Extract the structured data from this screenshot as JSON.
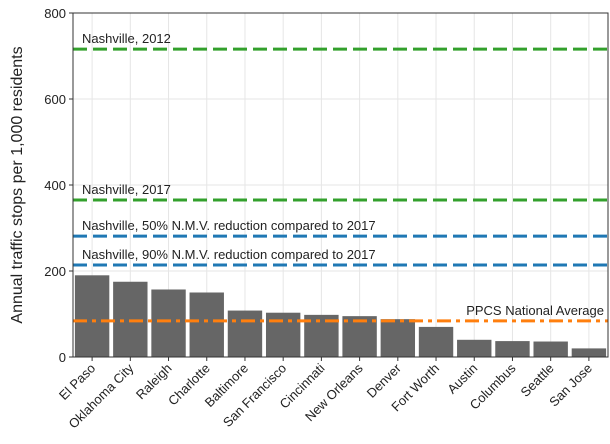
{
  "chart_data": {
    "type": "bar",
    "y_label": "Annual traffic stops per 1,000 residents",
    "categories": [
      "El Paso",
      "Oklahoma City",
      "Raleigh",
      "Charlotte",
      "Baltimore",
      "San Francisco",
      "Cincinnati",
      "New Orleans",
      "Denver",
      "Fort Worth",
      "Austin",
      "Columbus",
      "Seattle",
      "San Jose"
    ],
    "values": [
      190,
      175,
      157,
      150,
      108,
      103,
      98,
      95,
      88,
      70,
      40,
      37,
      36,
      20
    ],
    "color": "#666666",
    "ylim": [
      0,
      800
    ],
    "yticks": [
      0,
      200,
      400,
      600,
      800
    ],
    "grid": true,
    "reference_lines": [
      {
        "label": "Nashville, 2012",
        "value": 716,
        "color": "#33a02c",
        "dash": "dashed",
        "label_align": "start"
      },
      {
        "label": "Nashville, 2017",
        "value": 365,
        "color": "#33a02c",
        "dash": "dashed",
        "label_align": "start"
      },
      {
        "label": "Nashville, 50% N.M.V. reduction compared to 2017",
        "value": 281,
        "color": "#1f78b4",
        "dash": "dashed",
        "label_align": "start"
      },
      {
        "label": "Nashville, 90% N.M.V. reduction compared to 2017",
        "value": 214,
        "color": "#1f78b4",
        "dash": "dashed",
        "label_align": "start"
      },
      {
        "label": "PPCS National Average",
        "value": 84,
        "color": "#ff7f0e",
        "dash": "dashdot",
        "label_align": "end"
      }
    ]
  }
}
